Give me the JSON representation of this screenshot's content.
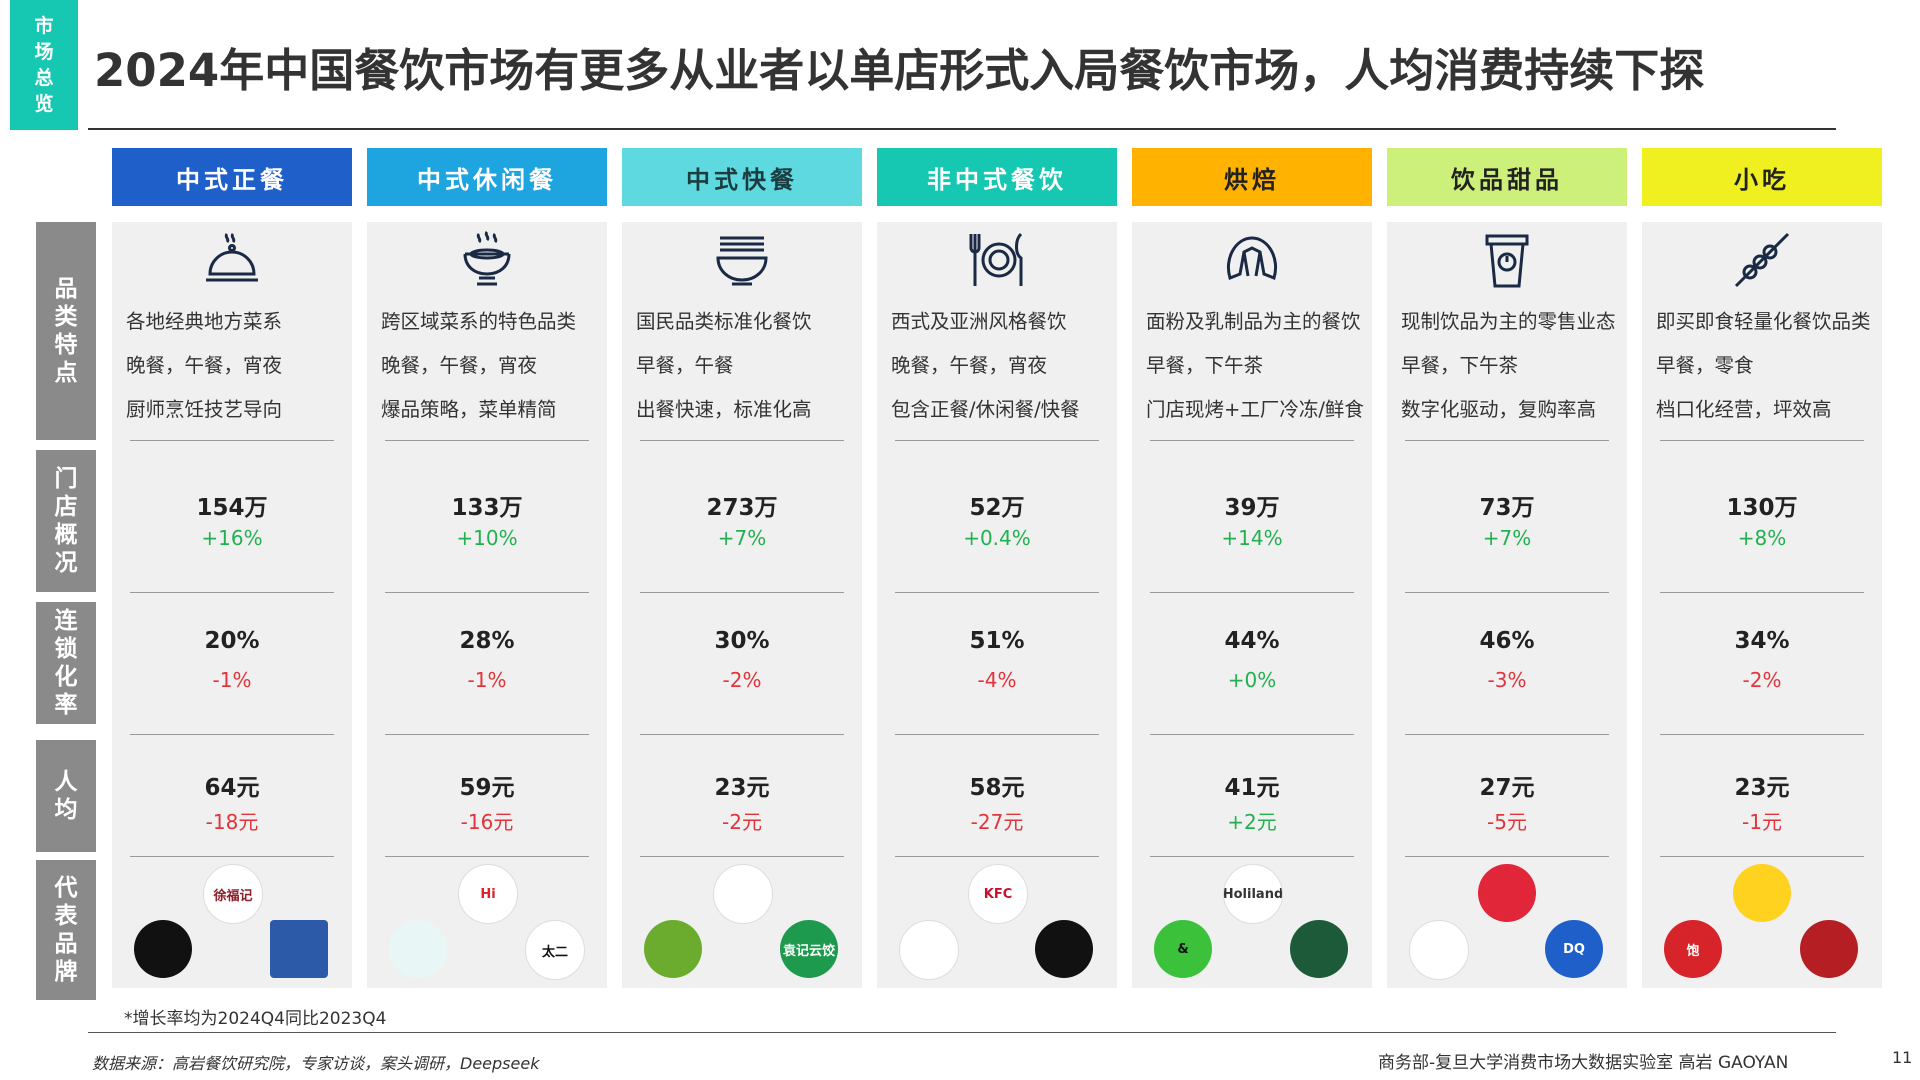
{
  "section_tag": [
    "市",
    "场",
    "总",
    "览"
  ],
  "title": "2024年中国餐饮市场有更多从业者以单店形式入局餐饮市场，人均消费持续下探",
  "row_labels": {
    "features": [
      "品",
      "类",
      "特",
      "点"
    ],
    "stores": [
      "门",
      "店",
      "概",
      "况"
    ],
    "chain": [
      "连",
      "锁",
      "化",
      "率"
    ],
    "per_capita": [
      "人",
      "均"
    ],
    "brands": [
      "代",
      "表",
      "品",
      "牌"
    ]
  },
  "columns": [
    {
      "name": "中式正餐",
      "color": "#1f5fc9",
      "text_color": "#ffffff",
      "icon": "cloche-icon",
      "features": [
        "各地经典地方菜系",
        "晚餐，午餐，宵夜",
        "厨师烹饪技艺导向"
      ],
      "stores": "154万",
      "stores_change": "+16%",
      "chain_rate": "20%",
      "chain_change": "-1%",
      "per_capita": "64元",
      "per_capita_change": "-18元",
      "logos": [
        {
          "name": "brand-logo-1",
          "text": "徐福记",
          "bg": "#ffffff",
          "fg": "#8b1f2a"
        },
        {
          "name": "brand-logo-2",
          "text": "",
          "bg": "#111111",
          "fg": "#ffffff"
        },
        {
          "name": "brand-logo-3",
          "text": "",
          "bg": "#2d5aa8",
          "fg": "#ffffff"
        }
      ]
    },
    {
      "name": "中式休闲餐",
      "color": "#1ea5e0",
      "text_color": "#ffffff",
      "icon": "hotpot-icon",
      "features": [
        "跨区域菜系的特色品类",
        "晚餐，午餐，宵夜",
        "爆品策略，菜单精简"
      ],
      "stores": "133万",
      "stores_change": "+10%",
      "chain_rate": "28%",
      "chain_change": "-1%",
      "per_capita": "59元",
      "per_capita_change": "-16元",
      "logos": [
        {
          "name": "brand-logo-1",
          "text": "Hi",
          "bg": "#ffffff",
          "fg": "#d7242b"
        },
        {
          "name": "brand-logo-2",
          "text": "",
          "bg": "#e8f6f5",
          "fg": "#2aa59a"
        },
        {
          "name": "brand-logo-3",
          "text": "太二",
          "bg": "#ffffff",
          "fg": "#111111"
        }
      ]
    },
    {
      "name": "中式快餐",
      "color": "#5fd9e0",
      "text_color": "#1c3d40",
      "icon": "noodle-bowl-icon",
      "features": [
        "国民品类标准化餐饮",
        "早餐，午餐",
        "出餐快速，标准化高"
      ],
      "stores": "273万",
      "stores_change": "+7%",
      "chain_rate": "30%",
      "chain_change": "-2%",
      "per_capita": "23元",
      "per_capita_change": "-2元",
      "logos": [
        {
          "name": "brand-logo-1",
          "text": "",
          "bg": "#ffffff",
          "fg": "#2c6b2f"
        },
        {
          "name": "brand-logo-2",
          "text": "",
          "bg": "#6bac2e",
          "fg": "#ffffff"
        },
        {
          "name": "brand-logo-3",
          "text": "袁记云饺",
          "bg": "#1e9a4e",
          "fg": "#ffffff"
        }
      ]
    },
    {
      "name": "非中式餐饮",
      "color": "#16c8b2",
      "text_color": "#ffffff",
      "icon": "fork-plate-knife-icon",
      "features": [
        "西式及亚洲风格餐饮",
        "晚餐，午餐，宵夜",
        "包含正餐/休闲餐/快餐"
      ],
      "stores": "52万",
      "stores_change": "+0.4%",
      "chain_rate": "51%",
      "chain_change": "-4%",
      "per_capita": "58元",
      "per_capita_change": "-27元",
      "logos": [
        {
          "name": "brand-logo-1",
          "text": "KFC",
          "bg": "#ffffff",
          "fg": "#c8102e"
        },
        {
          "name": "brand-logo-2",
          "text": "",
          "bg": "#ffffff",
          "fg": "#c8102e"
        },
        {
          "name": "brand-logo-3",
          "text": "",
          "bg": "#111111",
          "fg": "#ffffff"
        }
      ]
    },
    {
      "name": "烘焙",
      "color": "#ffb300",
      "text_color": "#222222",
      "icon": "croissant-icon",
      "features": [
        "面粉及乳制品为主的餐饮",
        "早餐，下午茶",
        "门店现烤+工厂冷冻/鲜食"
      ],
      "stores": "39万",
      "stores_change": "+14%",
      "chain_rate": "44%",
      "chain_change": "+0%",
      "per_capita": "41元",
      "per_capita_change": "+2元",
      "logos": [
        {
          "name": "brand-logo-1",
          "text": "Holiland",
          "bg": "#ffffff",
          "fg": "#333333"
        },
        {
          "name": "brand-logo-2",
          "text": "&",
          "bg": "#3cc13b",
          "fg": "#111111"
        },
        {
          "name": "brand-logo-3",
          "text": "",
          "bg": "#1d5a3a",
          "fg": "#ffffff"
        }
      ]
    },
    {
      "name": "饮品甜品",
      "color": "#cdf07a",
      "text_color": "#222222",
      "icon": "drink-cup-icon",
      "features": [
        "现制饮品为主的零售业态",
        "早餐，下午茶",
        "数字化驱动，复购率高"
      ],
      "stores": "73万",
      "stores_change": "+7%",
      "chain_rate": "46%",
      "chain_change": "-3%",
      "per_capita": "27元",
      "per_capita_change": "-5元",
      "logos": [
        {
          "name": "brand-logo-1",
          "text": "",
          "bg": "#e2263a",
          "fg": "#ffffff"
        },
        {
          "name": "brand-logo-2",
          "text": "",
          "bg": "#ffffff",
          "fg": "#1d3f8a"
        },
        {
          "name": "brand-logo-3",
          "text": "DQ",
          "bg": "#1f5fc9",
          "fg": "#ffffff"
        }
      ]
    },
    {
      "name": "小吃",
      "color": "#f0f021",
      "text_color": "#222222",
      "icon": "skewer-icon",
      "features": [
        "即买即食轻量化餐饮品类",
        "早餐，零食",
        "档口化经营，坪效高"
      ],
      "stores": "130万",
      "stores_change": "+8%",
      "chain_rate": "34%",
      "chain_change": "-2%",
      "per_capita": "23元",
      "per_capita_change": "-1元",
      "logos": [
        {
          "name": "brand-logo-1",
          "text": "",
          "bg": "#ffd21f",
          "fg": "#c8102e"
        },
        {
          "name": "brand-logo-2",
          "text": "饱",
          "bg": "#d7242b",
          "fg": "#ffffff"
        },
        {
          "name": "brand-logo-3",
          "text": "",
          "bg": "#b51f24",
          "fg": "#ffffff"
        }
      ]
    }
  ],
  "footnote": "*增长率均为2024Q4同比2023Q4",
  "source": "数据来源：高岩餐饮研究院，专家访谈，案头调研，Deepseek",
  "org": "商务部-复旦大学消费市场大数据实验室   高岩 GAOYAN",
  "page_number": "11"
}
